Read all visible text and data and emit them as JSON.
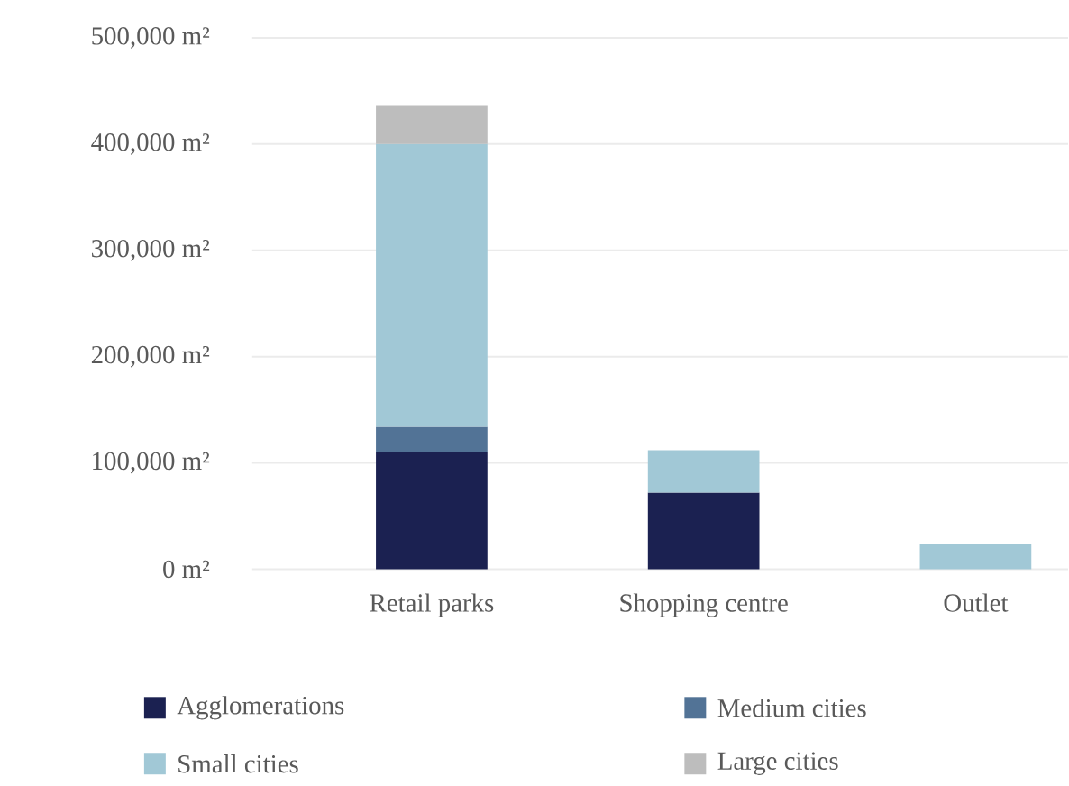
{
  "chart_data": {
    "type": "bar",
    "stacked": true,
    "categories": [
      "Retail parks",
      "Shopping centre",
      "Outlet"
    ],
    "series": [
      {
        "name": "Agglomerations",
        "color": "#1b2151",
        "values": [
          110000,
          72000,
          null
        ]
      },
      {
        "name": "Medium cities",
        "color": "#527396",
        "values": [
          24000,
          null,
          null
        ]
      },
      {
        "name": "Small cities",
        "color": "#a1c8d6",
        "values": [
          266000,
          40000,
          24000
        ]
      },
      {
        "name": "Large cities",
        "color": "#bdbdbd",
        "values": [
          36000,
          null,
          null
        ]
      }
    ],
    "ylim": [
      0,
      500000
    ],
    "yticks": [
      {
        "value": 0,
        "label": "0 m²"
      },
      {
        "value": 100000,
        "label": "100,000 m²"
      },
      {
        "value": 200000,
        "label": "200,000 m²"
      },
      {
        "value": 300000,
        "label": "300,000 m²"
      },
      {
        "value": 400000,
        "label": "400,000 m²"
      },
      {
        "value": 500000,
        "label": "500,000 m²"
      }
    ],
    "grid": "y",
    "legend": "bottom"
  }
}
